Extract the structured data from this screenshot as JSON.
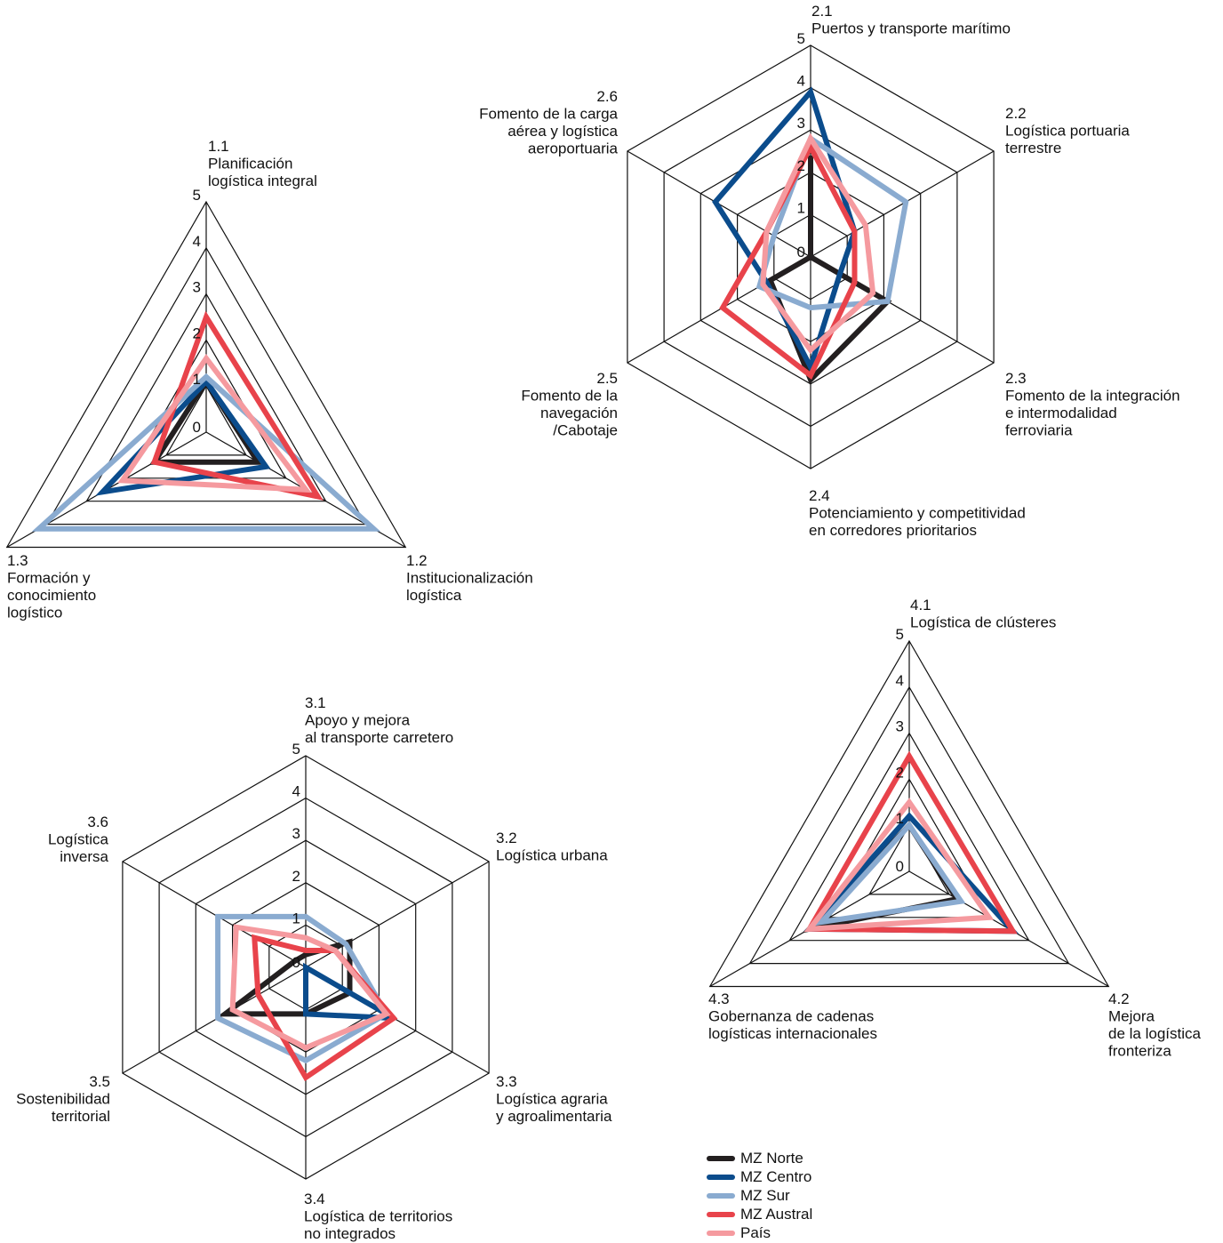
{
  "colors": {
    "MZ Norte": "#231f20",
    "MZ Centro": "#0b4c8c",
    "MZ Sur": "#8aabd0",
    "MZ Austral": "#e8434b",
    "País": "#f59a9f"
  },
  "legend": [
    "MZ Norte",
    "MZ Centro",
    "MZ Sur",
    "MZ Austral",
    "País"
  ],
  "chart_data": [
    {
      "type": "radar",
      "id": "axis1",
      "axes": [
        {
          "code": "1.1",
          "label": [
            "Planificación",
            "logística integral"
          ]
        },
        {
          "code": "1.2",
          "label": [
            "Institucionalización",
            "logística"
          ]
        },
        {
          "code": "1.3",
          "label": [
            "Formación y",
            "conocimiento",
            "logístico"
          ]
        }
      ],
      "ticks": [
        "0",
        "1",
        "2",
        "3",
        "4",
        "5"
      ],
      "range": [
        0,
        5
      ],
      "series": [
        {
          "name": "MZ Norte",
          "values": [
            1.1,
            1.3,
            1.3
          ]
        },
        {
          "name": "MZ Centro",
          "values": [
            1.1,
            1.5,
            2.6
          ]
        },
        {
          "name": "MZ Sur",
          "values": [
            1.2,
            4.2,
            4.2
          ]
        },
        {
          "name": "MZ Austral",
          "values": [
            2.5,
            2.8,
            1.3
          ]
        },
        {
          "name": "País",
          "values": [
            1.6,
            2.5,
            2.1
          ]
        }
      ]
    },
    {
      "type": "radar",
      "id": "axis2",
      "axes": [
        {
          "code": "2.1",
          "label": [
            "Puertos y transporte marítimo"
          ]
        },
        {
          "code": "2.2",
          "label": [
            "Logística portuaria",
            "terrestre"
          ]
        },
        {
          "code": "2.3",
          "label": [
            "Fomento de la integración",
            "e intermodalidad",
            "ferroviaria"
          ]
        },
        {
          "code": "2.4",
          "label": [
            "Potenciamiento y competitividad",
            "en corredores prioritarios"
          ]
        },
        {
          "code": "2.5",
          "label": [
            "Fomento de la",
            "navegación",
            "/Cabotaje"
          ]
        },
        {
          "code": "2.6",
          "label": [
            "Fomento de la carga",
            "aérea y logística",
            "aeroportuaria"
          ]
        }
      ],
      "ticks": [
        "0",
        "1",
        "2",
        "3",
        "4",
        "5"
      ],
      "range": [
        0,
        5
      ],
      "series": [
        {
          "name": "MZ Norte",
          "values": [
            2.4,
            0.0,
            2.1,
            2.9,
            1.1,
            0.0
          ]
        },
        {
          "name": "MZ Centro",
          "values": [
            3.9,
            1.2,
            0.8,
            2.6,
            1.2,
            2.6
          ]
        },
        {
          "name": "MZ Sur",
          "values": [
            2.8,
            2.6,
            2.1,
            1.2,
            1.4,
            1.0
          ]
        },
        {
          "name": "MZ Austral",
          "values": [
            2.6,
            1.2,
            1.2,
            2.8,
            2.4,
            1.2
          ]
        },
        {
          "name": "País",
          "values": [
            2.8,
            1.5,
            1.7,
            2.2,
            1.3,
            1.2
          ]
        }
      ]
    },
    {
      "type": "radar",
      "id": "axis3",
      "axes": [
        {
          "code": "3.1",
          "label": [
            "Apoyo y mejora",
            "al transporte carretero"
          ]
        },
        {
          "code": "3.2",
          "label": [
            "Logística urbana"
          ]
        },
        {
          "code": "3.3",
          "label": [
            "Logística agraria",
            "y agroalimentaria"
          ]
        },
        {
          "code": "3.4",
          "label": [
            "Logística de territorios",
            "no integrados"
          ]
        },
        {
          "code": "3.5",
          "label": [
            "Sostenibilidad",
            "territorial"
          ]
        },
        {
          "code": "3.6",
          "label": [
            "Logística",
            "inversa"
          ]
        }
      ],
      "ticks": [
        "0",
        "1",
        "2",
        "3",
        "4",
        "5"
      ],
      "range": [
        0,
        5
      ],
      "series": [
        {
          "name": "MZ Norte",
          "values": [
            0.3,
            1.2,
            1.2,
            1.1,
            2.2,
            0.3
          ]
        },
        {
          "name": "MZ Centro",
          "values": [
            0.0,
            0.0,
            2.4,
            1.1,
            0.0,
            0.0
          ]
        },
        {
          "name": "MZ Sur",
          "values": [
            1.2,
            1.1,
            2.2,
            2.2,
            2.4,
            2.4
          ]
        },
        {
          "name": "MZ Austral",
          "values": [
            0.4,
            0.8,
            2.4,
            2.6,
            1.3,
            1.4
          ]
        },
        {
          "name": "País",
          "values": [
            0.7,
            0.8,
            2.2,
            1.9,
            2.0,
            1.9
          ]
        }
      ]
    },
    {
      "type": "radar",
      "id": "axis4",
      "axes": [
        {
          "code": "4.1",
          "label": [
            "Logística de clústeres"
          ]
        },
        {
          "code": "4.2",
          "label": [
            "Mejora",
            "de la logística",
            "fronteriza"
          ]
        },
        {
          "code": "4.3",
          "label": [
            "Gobernanza de cadenas",
            "logísticas internacionales"
          ]
        }
      ],
      "ticks": [
        "0",
        "1",
        "2",
        "3",
        "4",
        "5"
      ],
      "range": [
        0,
        5
      ],
      "series": [
        {
          "name": "MZ Norte",
          "values": [
            1.0,
            1.2,
            2.5
          ]
        },
        {
          "name": "MZ Centro",
          "values": [
            1.2,
            2.6,
            2.5
          ]
        },
        {
          "name": "MZ Sur",
          "values": [
            1.0,
            1.3,
            2.2
          ]
        },
        {
          "name": "MZ Austral",
          "values": [
            2.5,
            2.6,
            2.5
          ]
        },
        {
          "name": "País",
          "values": [
            1.5,
            2.0,
            2.5
          ]
        }
      ]
    }
  ]
}
